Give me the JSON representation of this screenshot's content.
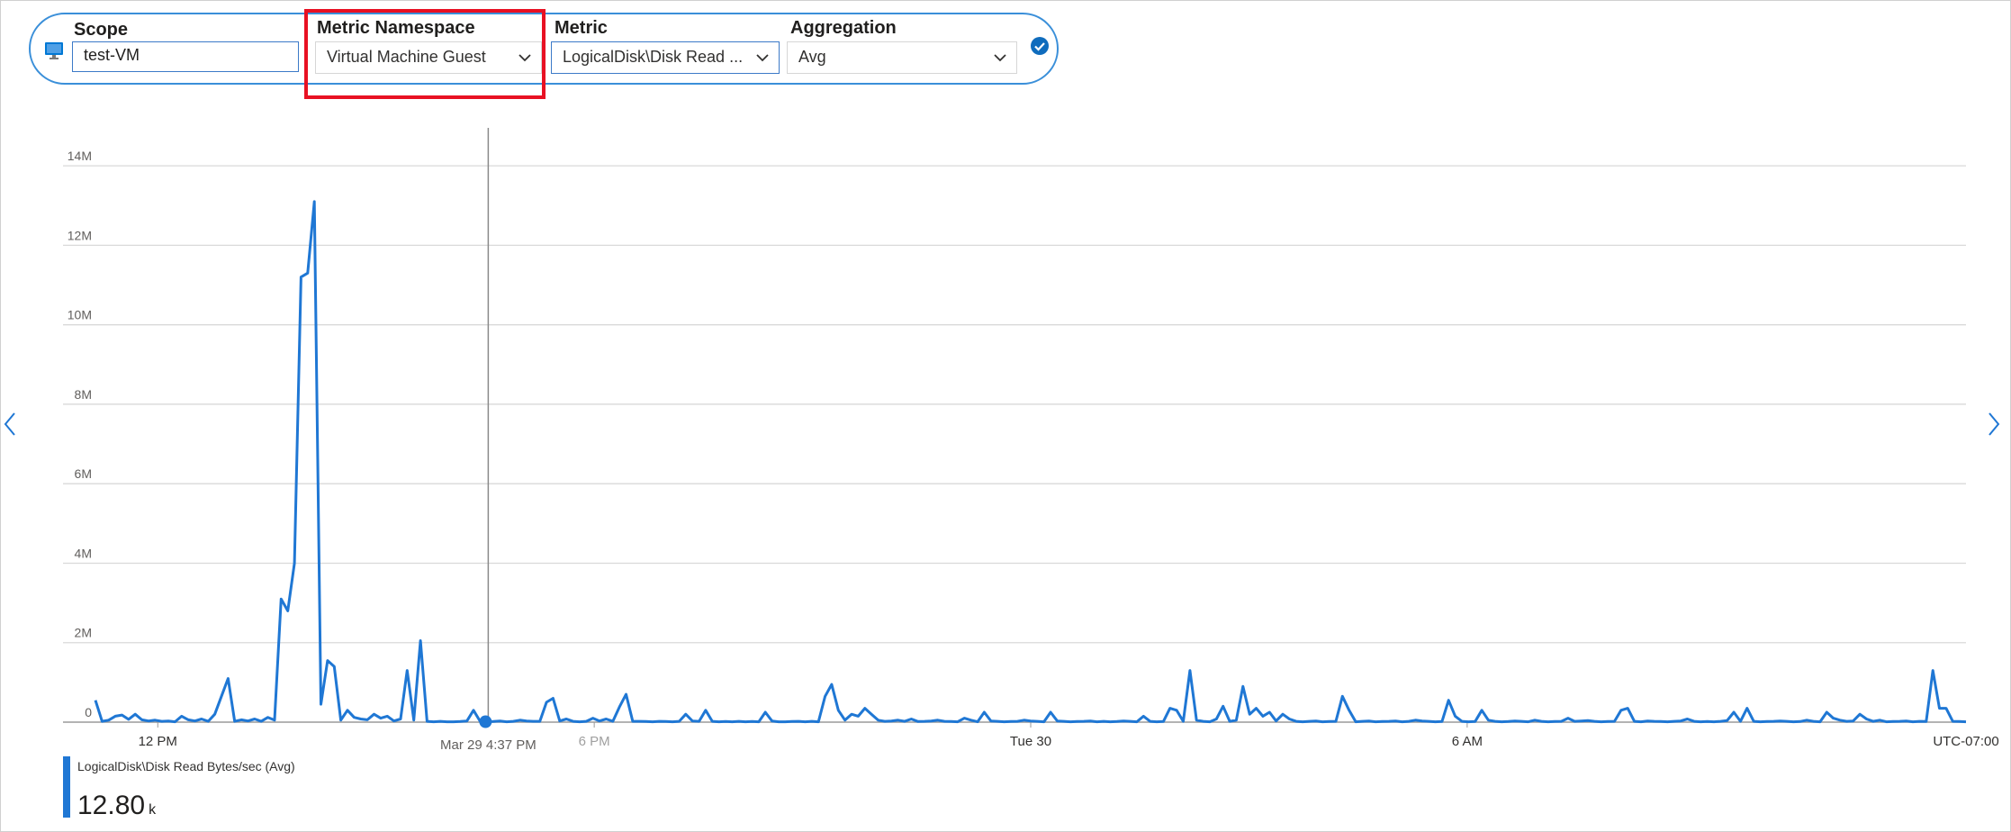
{
  "toolbar": {
    "scope_label": "Scope",
    "scope_value": "test-VM",
    "namespace_label": "Metric Namespace",
    "namespace_value": "Virtual Machine Guest",
    "metric_label": "Metric",
    "metric_value": "LogicalDisk\\Disk Read ...",
    "aggregation_label": "Aggregation",
    "aggregation_value": "Avg"
  },
  "icons": {
    "scope": "virtual-machine-icon",
    "confirm": "checkmark-circle-icon",
    "dropdown": "chevron-down-icon",
    "prev": "chevron-left-icon",
    "next": "chevron-right-icon"
  },
  "colors": {
    "series": "#1f77d4",
    "accent": "#3a8fd9",
    "highlight": "#e81123"
  },
  "cursor": {
    "label": "Mar 29 4:37 PM"
  },
  "timezone": "UTC-07:00",
  "legend": {
    "name": "LogicalDisk\\Disk Read Bytes/sec (Avg)",
    "value": "12.80",
    "unit": "k"
  },
  "chart_data": {
    "type": "line",
    "title": "",
    "xlabel": "",
    "ylabel": "",
    "grid": true,
    "ylim": [
      0,
      15000000
    ],
    "yticks": [
      0,
      2000000,
      4000000,
      6000000,
      8000000,
      10000000,
      12000000,
      14000000
    ],
    "ytick_labels": [
      "0",
      "2M",
      "4M",
      "6M",
      "8M",
      "10M",
      "12M",
      "14M"
    ],
    "xlim": [
      0,
      300
    ],
    "xticks": [
      10,
      80,
      150,
      220,
      290
    ],
    "xtick_labels": [
      "12 PM",
      "6 PM",
      "Tue 30",
      "6 AM",
      "UTC-07:00"
    ],
    "cursor_x": 63,
    "series": [
      {
        "name": "LogicalDisk\\Disk Read Bytes/sec (Avg)",
        "values": [
          550000,
          20000,
          50000,
          150000,
          180000,
          70000,
          200000,
          60000,
          30000,
          50000,
          20000,
          30000,
          10000,
          150000,
          60000,
          30000,
          80000,
          20000,
          200000,
          650000,
          1100000,
          20000,
          60000,
          30000,
          80000,
          20000,
          120000,
          50000,
          3100000,
          2800000,
          4000000,
          11200000,
          11300000,
          13100000,
          450000,
          1550000,
          1400000,
          50000,
          300000,
          120000,
          80000,
          60000,
          200000,
          100000,
          150000,
          30000,
          80000,
          1300000,
          50000,
          2050000,
          20000,
          10000,
          20000,
          10000,
          10000,
          15000,
          30000,
          300000,
          20000,
          10000,
          15000,
          30000,
          10000,
          20000,
          50000,
          30000,
          20000,
          20000,
          500000,
          600000,
          30000,
          80000,
          20000,
          10000,
          20000,
          100000,
          30000,
          80000,
          20000,
          380000,
          700000,
          20000,
          20000,
          15000,
          10000,
          20000,
          15000,
          10000,
          20000,
          200000,
          30000,
          20000,
          300000,
          20000,
          10000,
          15000,
          10000,
          20000,
          10000,
          15000,
          10000,
          250000,
          30000,
          10000,
          10000,
          15000,
          20000,
          10000,
          20000,
          10000,
          650000,
          950000,
          300000,
          50000,
          200000,
          150000,
          350000,
          200000,
          50000,
          20000,
          30000,
          50000,
          20000,
          80000,
          15000,
          20000,
          30000,
          50000,
          20000,
          15000,
          10000,
          100000,
          50000,
          10000,
          250000,
          30000,
          20000,
          10000,
          15000,
          20000,
          50000,
          30000,
          20000,
          10000,
          250000,
          30000,
          20000,
          10000,
          15000,
          20000,
          30000,
          10000,
          20000,
          10000,
          15000,
          30000,
          20000,
          10000,
          150000,
          20000,
          10000,
          15000,
          350000,
          300000,
          20000,
          1300000,
          50000,
          20000,
          10000,
          80000,
          400000,
          20000,
          50000,
          900000,
          200000,
          350000,
          150000,
          250000,
          30000,
          200000,
          80000,
          20000,
          10000,
          20000,
          30000,
          10000,
          15000,
          20000,
          650000,
          300000,
          10000,
          20000,
          30000,
          10000,
          15000,
          20000,
          30000,
          10000,
          20000,
          50000,
          30000,
          20000,
          10000,
          15000,
          550000,
          150000,
          20000,
          10000,
          15000,
          300000,
          50000,
          20000,
          10000,
          15000,
          30000,
          20000,
          10000,
          50000,
          20000,
          10000,
          15000,
          20000,
          100000,
          20000,
          30000,
          40000,
          20000,
          10000,
          15000,
          20000,
          300000,
          350000,
          20000,
          10000,
          30000,
          20000,
          15000,
          10000,
          20000,
          30000,
          80000,
          20000,
          10000,
          15000,
          10000,
          20000,
          40000,
          250000,
          20000,
          350000,
          20000,
          10000,
          15000,
          20000,
          30000,
          20000,
          10000,
          15000,
          50000,
          20000,
          10000,
          250000,
          100000,
          50000,
          20000,
          30000,
          200000,
          80000,
          20000,
          50000,
          10000,
          15000,
          20000,
          30000,
          10000,
          20000,
          15000,
          1300000,
          350000,
          350000,
          20000,
          15000,
          10000
        ]
      }
    ]
  }
}
